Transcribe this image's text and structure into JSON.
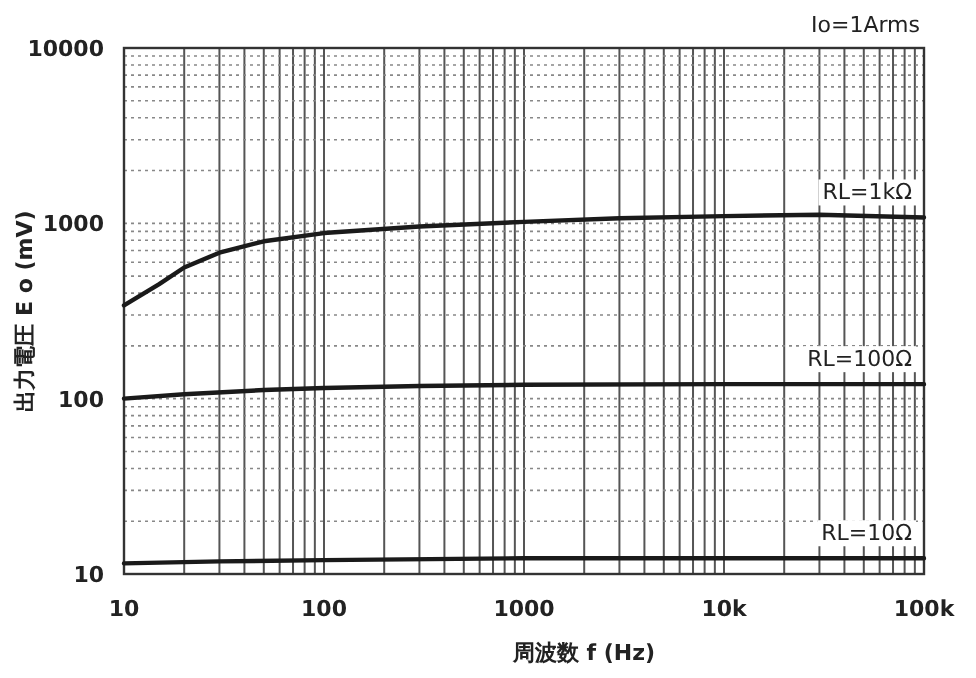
{
  "chart_data": {
    "type": "line",
    "xlabel": "周波数 f (Hz)",
    "ylabel": "出力電圧 E o (mV)",
    "annotations": [
      "Io=1Arms"
    ],
    "log": "xy",
    "grid": true,
    "line_style": "solid",
    "xlim": [
      10,
      100000
    ],
    "ylim": [
      10,
      10000
    ],
    "xticks": [
      10,
      100,
      1000,
      {
        "value": 10000,
        "label": "10k"
      },
      {
        "value": 100000,
        "label": "100k"
      }
    ],
    "yticks": [
      10,
      100,
      1000,
      10000
    ],
    "series": [
      {
        "name": "RL=1kΩ",
        "color": "#1a1a1a",
        "x": [
          10,
          15,
          20,
          30,
          50,
          100,
          300,
          1000,
          3000,
          10000,
          30000,
          100000
        ],
        "values": [
          340,
          450,
          560,
          680,
          790,
          880,
          960,
          1020,
          1070,
          1100,
          1120,
          1080
        ]
      },
      {
        "name": "RL=100Ω",
        "color": "#1a1a1a",
        "x": [
          10,
          20,
          50,
          100,
          300,
          1000,
          10000,
          100000
        ],
        "values": [
          100,
          106,
          112,
          115,
          118,
          120,
          121,
          121
        ]
      },
      {
        "name": "RL=10Ω",
        "color": "#1a1a1a",
        "x": [
          10,
          30,
          100,
          1000,
          10000,
          100000
        ],
        "values": [
          11.5,
          11.8,
          12,
          12.3,
          12.3,
          12.3
        ]
      }
    ]
  }
}
